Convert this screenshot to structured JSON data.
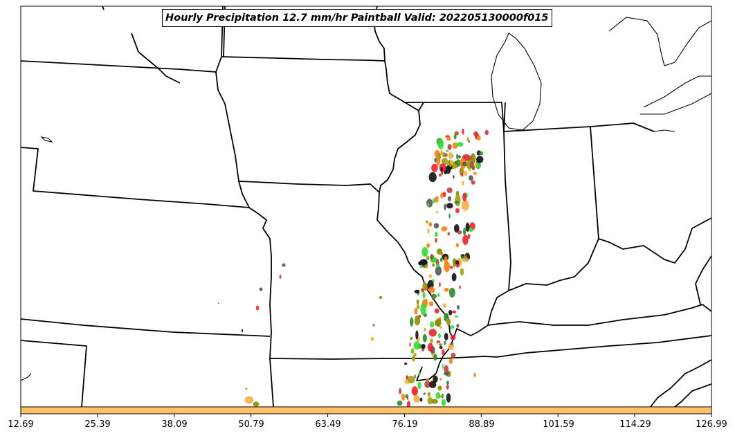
{
  "title": "Hourly Precipitation 12.7 mm/hr Paintball Valid: 202205130000f015",
  "colorbar": {
    "color": "#FFC266",
    "tick_labels": [
      "12.69",
      "25.39",
      "38.09",
      "50.79",
      "63.49",
      "76.19",
      "88.89",
      "101.59",
      "114.29",
      "126.99"
    ]
  },
  "map": {
    "background": "#FFFFFF",
    "boundary_color": "#000000",
    "paintball_colors": [
      "#E8242A",
      "#FF7F11",
      "#2E8B2E",
      "#33DD33",
      "#8B8B00",
      "#A0A010",
      "#555555",
      "#111111",
      "#F5B041",
      "#C04040"
    ]
  }
}
